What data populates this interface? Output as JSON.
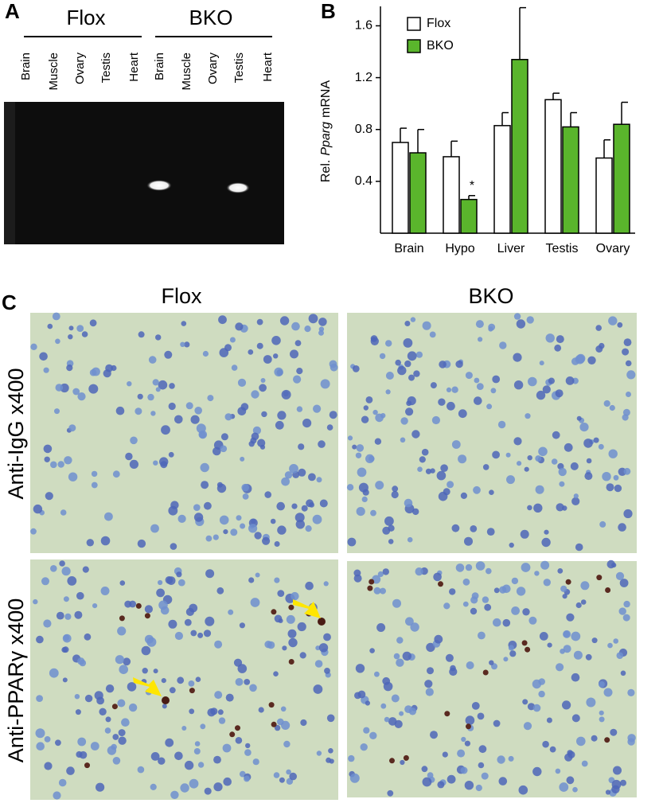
{
  "panel_labels": [
    "A",
    "B",
    "C"
  ],
  "gel": {
    "groups": [
      "Flox",
      "BKO"
    ],
    "lanes": [
      "Brain",
      "Muscle",
      "Ovary",
      "Testis",
      "Heart",
      "Brain",
      "Muscle",
      "Ovary",
      "Testis",
      "Heart"
    ]
  },
  "chart_data": {
    "type": "bar",
    "ylabel_parts": [
      "Rel.",
      "Pparg",
      "mRNA"
    ],
    "categories": [
      "Brain",
      "Hypo",
      "Liver",
      "Testis",
      "Ovary"
    ],
    "series": [
      {
        "name": "Flox",
        "color": "#ffffff",
        "values": [
          0.7,
          0.59,
          0.83,
          1.03,
          0.58
        ],
        "errors": [
          0.11,
          0.12,
          0.1,
          0.05,
          0.14
        ]
      },
      {
        "name": "BKO",
        "color": "#5ab52c",
        "values": [
          0.62,
          0.26,
          1.34,
          0.82,
          0.84
        ],
        "errors": [
          0.18,
          0.03,
          0.4,
          0.11,
          0.17
        ]
      }
    ],
    "annotations": [
      {
        "text": "*",
        "category": 1,
        "series": 1
      }
    ],
    "ylim": [
      0,
      1.75
    ],
    "yticks": [
      0.4,
      0.8,
      1.2,
      1.6
    ],
    "grid": false
  },
  "micrographs": {
    "columns": [
      "Flox",
      "BKO"
    ],
    "rows": [
      "Anti-IgG x400",
      "Anti-PPARγ x400"
    ]
  }
}
